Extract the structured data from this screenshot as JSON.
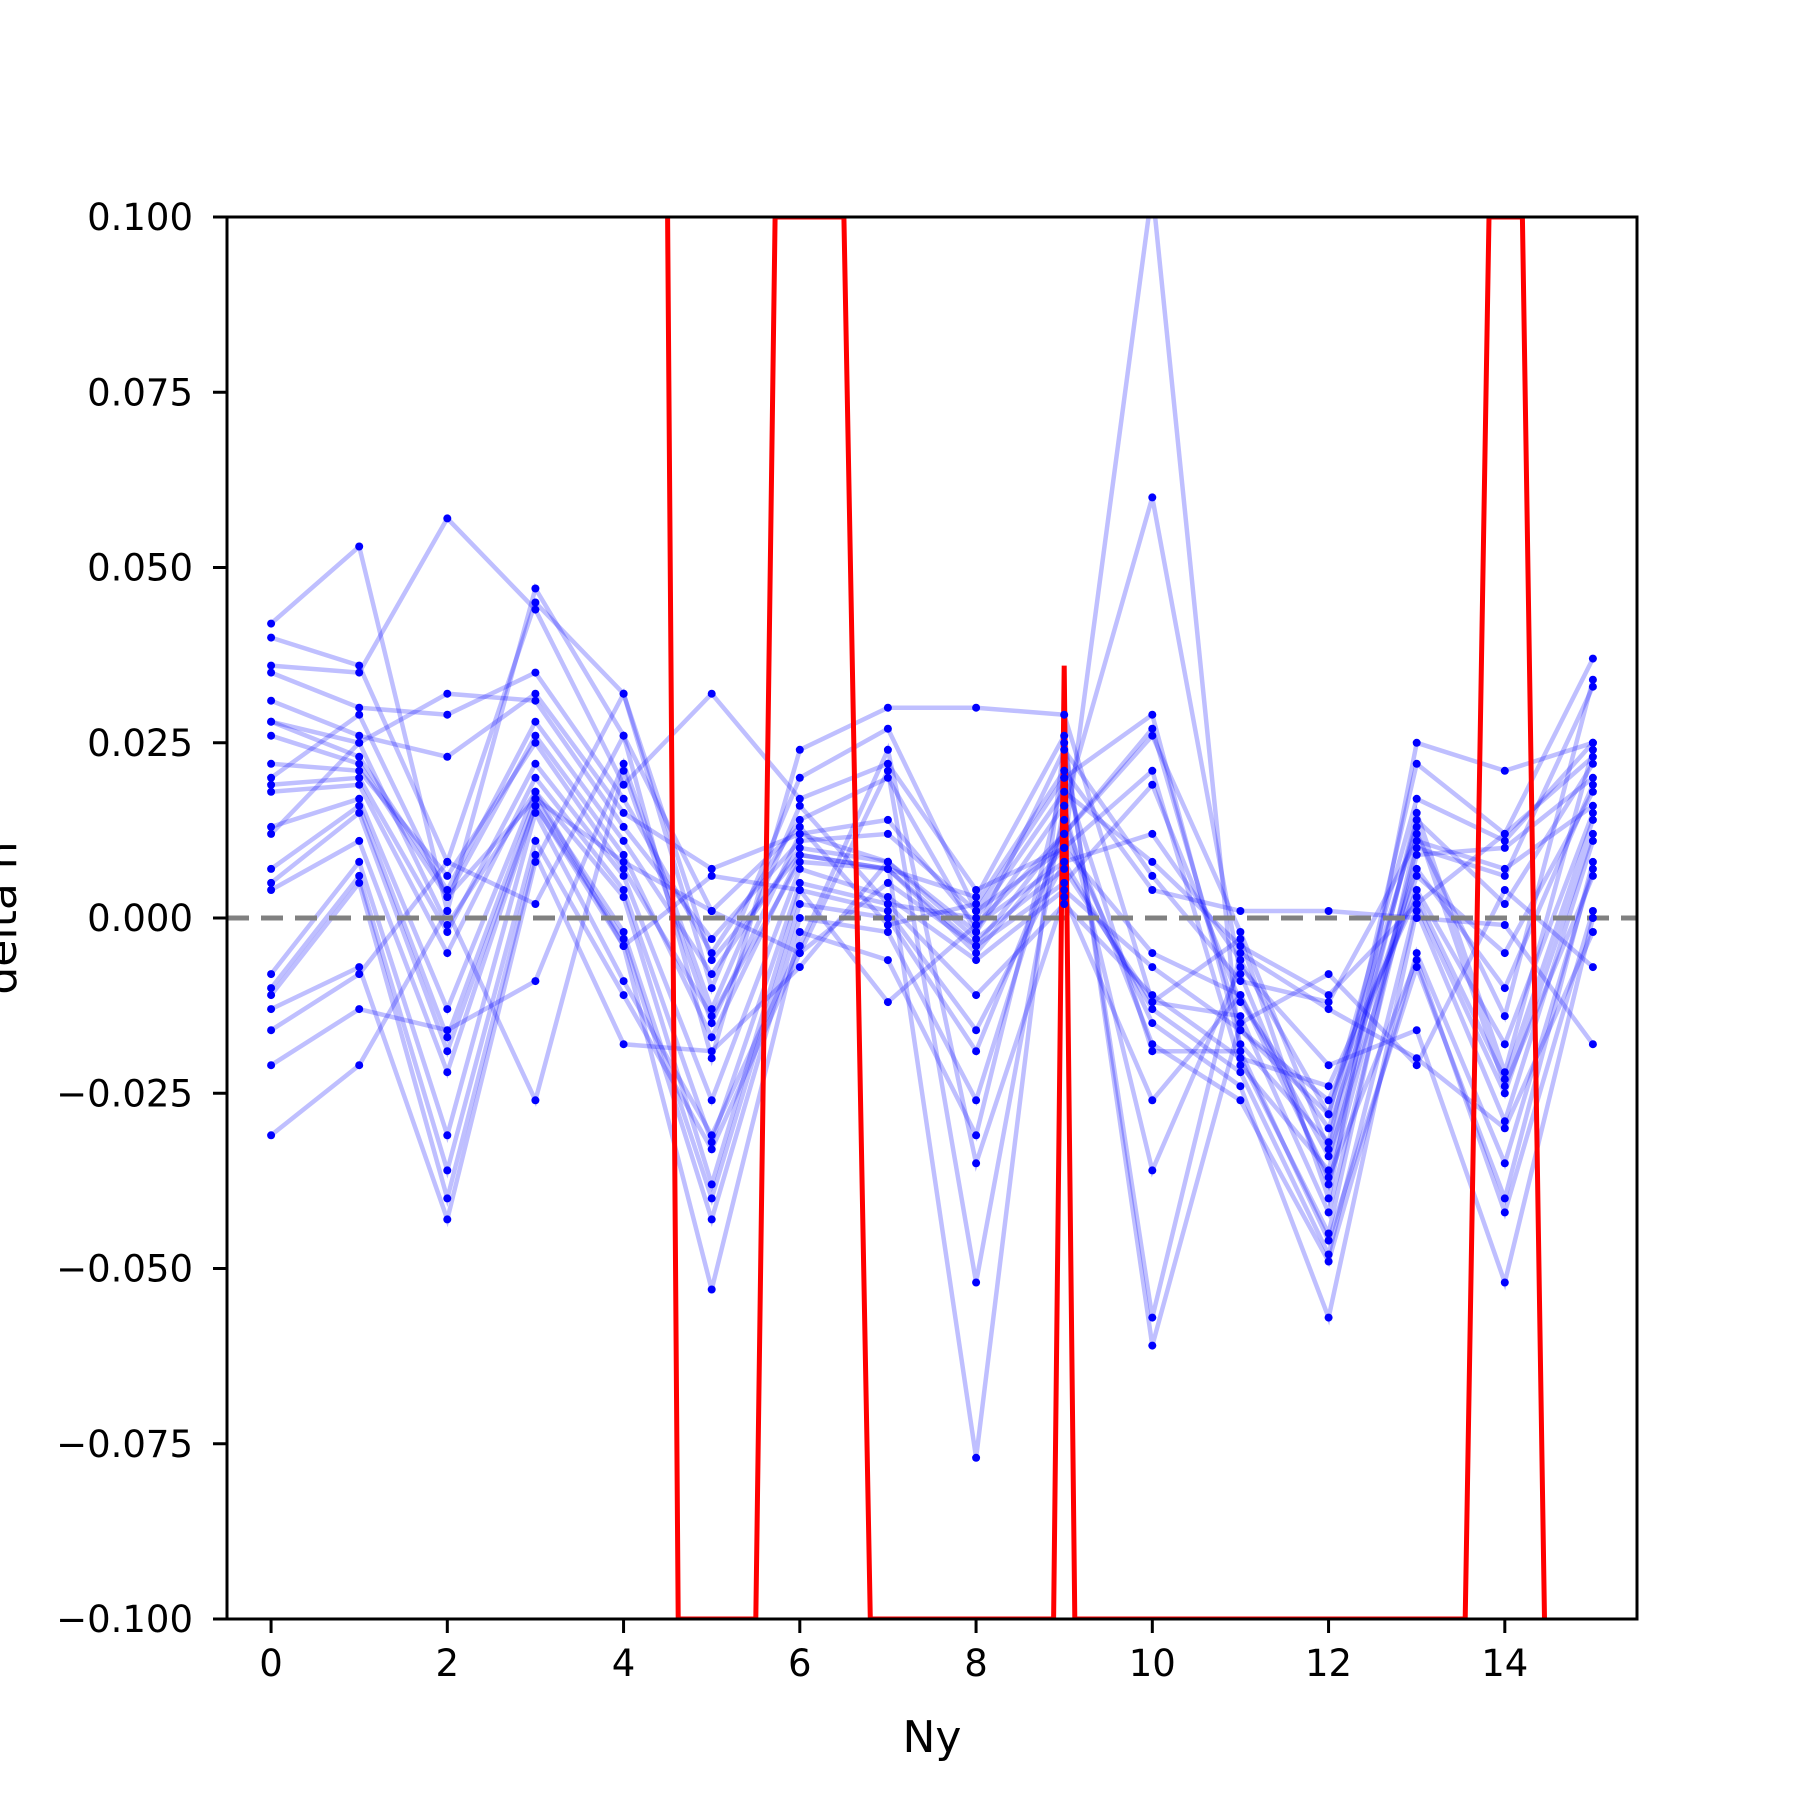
{
  "chart_data": {
    "type": "line",
    "xlabel": "Ny",
    "ylabel": "delta h",
    "xlim": [
      -0.5,
      15.5
    ],
    "ylim": [
      -0.1,
      0.1
    ],
    "x_ticks": [
      0,
      2,
      4,
      6,
      8,
      10,
      12,
      14
    ],
    "x_tick_labels": [
      "0",
      "2",
      "4",
      "6",
      "8",
      "10",
      "12",
      "14"
    ],
    "y_ticks": [
      -0.1,
      -0.075,
      -0.05,
      -0.025,
      0.0,
      0.025,
      0.05,
      0.075,
      0.1
    ],
    "y_tick_labels": [
      "−0.100",
      "−0.075",
      "−0.050",
      "−0.025",
      "0.000",
      "0.025",
      "0.050",
      "0.075",
      "0.100"
    ],
    "grid": false,
    "legend": "none",
    "reference_line": {
      "y": 0.0,
      "style": "dashed",
      "color": "#808080"
    },
    "colors": {
      "sample": "#0000ff",
      "highlight": "#ff0000",
      "reference": "#808080"
    },
    "x": [
      0,
      1,
      2,
      3,
      4,
      5,
      6,
      7,
      8,
      9,
      10,
      11,
      12,
      13,
      14,
      15
    ],
    "series": [
      {
        "values": [
          0.042,
          0.053,
          0.001,
          0.047,
          0.026,
          -0.02,
          0.024,
          0.03,
          0.03,
          0.029,
          -0.012,
          -0.003,
          -0.04,
          0.025,
          0.021,
          0.025
        ]
      },
      {
        "values": [
          0.04,
          0.036,
          0.008,
          0.045,
          0.032,
          -0.01,
          0.02,
          0.027,
          0.001,
          0.02,
          0.029,
          -0.018,
          -0.032,
          0.022,
          0.012,
          0.037
        ]
      },
      {
        "values": [
          0.036,
          0.035,
          0.057,
          0.044,
          0.019,
          0.032,
          0.017,
          0.022,
          0.004,
          0.01,
          0.104,
          -0.02,
          -0.045,
          0.012,
          -0.014,
          0.034
        ]
      },
      {
        "values": [
          0.035,
          0.03,
          0.029,
          0.035,
          0.017,
          -0.005,
          0.014,
          0.02,
          -0.002,
          0.016,
          0.06,
          -0.008,
          -0.038,
          0.01,
          0.006,
          0.033
        ]
      },
      {
        "values": [
          0.031,
          0.026,
          0.023,
          0.032,
          0.015,
          0.007,
          0.012,
          0.014,
          -0.001,
          0.012,
          0.027,
          -0.016,
          -0.028,
          0.017,
          0.011,
          0.025
        ]
      },
      {
        "values": [
          0.028,
          0.025,
          0.032,
          0.031,
          0.013,
          -0.003,
          0.011,
          0.012,
          0.001,
          0.01,
          0.021,
          -0.021,
          -0.036,
          0.015,
          -0.022,
          0.024
        ]
      },
      {
        "values": [
          0.028,
          0.023,
          0.004,
          0.028,
          0.011,
          -0.008,
          0.01,
          0.008,
          -0.003,
          0.007,
          -0.012,
          -0.014,
          -0.042,
          0.009,
          0.01,
          0.02
        ]
      },
      {
        "values": [
          0.026,
          0.022,
          0.003,
          0.026,
          0.009,
          -0.017,
          0.009,
          0.007,
          -0.004,
          0.005,
          0.019,
          -0.012,
          -0.03,
          0.007,
          -0.01,
          0.019
        ]
      },
      {
        "values": [
          0.022,
          0.021,
          0.006,
          0.025,
          0.007,
          -0.014,
          0.008,
          0.007,
          -0.005,
          0.01,
          -0.005,
          -0.011,
          -0.034,
          0.006,
          -0.005,
          0.018
        ]
      },
      {
        "values": [
          0.019,
          0.02,
          -0.002,
          0.022,
          0.006,
          -0.026,
          0.007,
          0.003,
          -0.006,
          0.004,
          -0.007,
          -0.016,
          -0.026,
          0.004,
          -0.018,
          0.015
        ]
      },
      {
        "values": [
          0.018,
          0.019,
          -0.005,
          0.02,
          0.004,
          -0.032,
          0.005,
          0.002,
          -0.011,
          0.002,
          -0.011,
          -0.02,
          -0.024,
          0.003,
          -0.023,
          0.014
        ]
      },
      {
        "values": [
          0.013,
          0.017,
          -0.013,
          0.018,
          0.003,
          -0.038,
          0.004,
          0.001,
          -0.016,
          0.008,
          -0.013,
          -0.022,
          -0.048,
          0.002,
          -0.025,
          0.012
        ]
      },
      {
        "values": [
          0.007,
          0.016,
          -0.017,
          0.017,
          -0.002,
          -0.04,
          0.002,
          0.0,
          -0.019,
          0.012,
          -0.015,
          -0.024,
          -0.057,
          0.001,
          -0.029,
          0.011
        ]
      },
      {
        "values": [
          0.005,
          0.015,
          -0.019,
          0.016,
          -0.003,
          -0.043,
          0.0,
          -0.002,
          -0.026,
          0.014,
          -0.018,
          -0.026,
          -0.049,
          -0.005,
          -0.035,
          0.007
        ]
      },
      {
        "values": [
          0.004,
          0.011,
          -0.022,
          0.016,
          -0.004,
          -0.053,
          -0.002,
          -0.006,
          -0.031,
          0.02,
          -0.019,
          -0.019,
          -0.046,
          -0.007,
          -0.04,
          0.008
        ]
      },
      {
        "values": [
          -0.008,
          0.008,
          -0.031,
          0.015,
          -0.009,
          -0.031,
          -0.004,
          0.024,
          -0.035,
          0.003,
          -0.026,
          -0.011,
          -0.037,
          -0.006,
          -0.042,
          0.001
        ]
      },
      {
        "values": [
          -0.01,
          0.006,
          -0.036,
          0.011,
          -0.011,
          -0.033,
          -0.005,
          0.021,
          -0.052,
          0.016,
          -0.036,
          -0.007,
          -0.021,
          -0.016,
          -0.052,
          0.0
        ]
      },
      {
        "values": [
          -0.011,
          0.005,
          -0.04,
          0.009,
          -0.018,
          -0.019,
          -0.007,
          0.008,
          -0.077,
          0.025,
          -0.057,
          -0.005,
          -0.013,
          -0.02,
          -0.03,
          -0.002
        ]
      },
      {
        "values": [
          -0.013,
          -0.007,
          -0.043,
          0.008,
          0.032,
          -0.006,
          0.009,
          0.007,
          0.003,
          0.026,
          -0.061,
          -0.015,
          -0.008,
          -0.021,
          0.004,
          -0.007
        ]
      },
      {
        "values": [
          -0.016,
          -0.008,
          0.008,
          0.002,
          0.026,
          0.001,
          0.013,
          -0.001,
          0.002,
          0.021,
          0.004,
          0.001,
          0.001,
          0.0,
          -0.001,
          -0.018
        ]
      },
      {
        "values": [
          -0.021,
          -0.013,
          -0.016,
          -0.009,
          0.022,
          -0.013,
          0.016,
          0.002,
          0.0,
          0.018,
          0.008,
          -0.004,
          -0.011,
          0.002,
          0.012,
          0.023
        ]
      },
      {
        "values": [
          -0.031,
          -0.021,
          0.001,
          -0.026,
          0.021,
          -0.015,
          0.012,
          0.008,
          -0.002,
          0.024,
          0.006,
          -0.009,
          -0.012,
          0.011,
          0.007,
          0.016
        ]
      },
      {
        "values": [
          0.012,
          0.025,
          -0.001,
          0.018,
          -0.004,
          0.006,
          0.004,
          -0.012,
          -0.001,
          0.008,
          0.012,
          -0.006,
          -0.028,
          0.013,
          -0.024,
          0.006
        ]
      },
      {
        "values": [
          0.02,
          0.029,
          0.003,
          0.017,
          0.008,
          0.001,
          -0.005,
          0.005,
          -0.004,
          0.012,
          0.026,
          -0.002,
          -0.033,
          0.014,
          0.002,
          0.022
        ]
      }
    ],
    "highlight_series": {
      "x": [
        4.5,
        4.62,
        5.5,
        5.72,
        6.5,
        6.8,
        8.88,
        9.0,
        9.12,
        13.55,
        13.82,
        14.2,
        14.45
      ],
      "values": [
        0.1,
        -0.1,
        -0.1,
        0.1,
        0.1,
        -0.1,
        -0.1,
        0.036,
        -0.1,
        -0.1,
        0.1,
        0.1,
        -0.1
      ]
    }
  }
}
